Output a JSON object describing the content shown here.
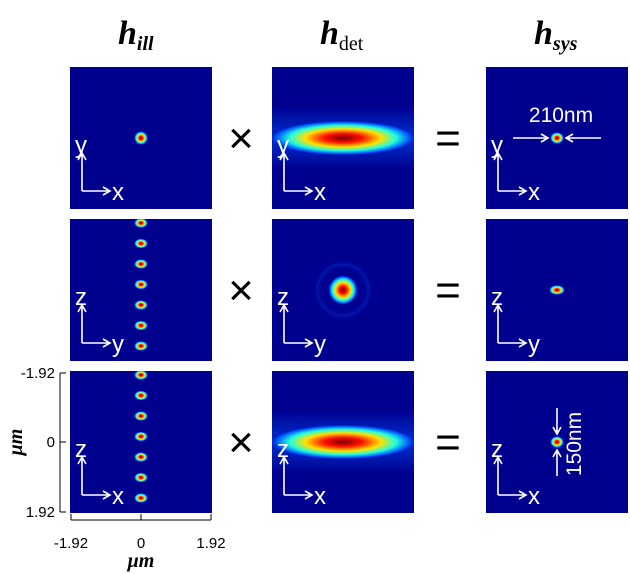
{
  "headers": [
    {
      "main": "h",
      "sub": "ill"
    },
    {
      "main": "h",
      "sub": "det"
    },
    {
      "main": "h",
      "sub": "sys"
    }
  ],
  "panels": [
    [
      {
        "v": "y",
        "h": "x"
      },
      {
        "v": "y",
        "h": "x"
      },
      {
        "v": "y",
        "h": "x"
      }
    ],
    [
      {
        "v": "z",
        "h": "y"
      },
      {
        "v": "z",
        "h": "y"
      },
      {
        "v": "z",
        "h": "y"
      }
    ],
    [
      {
        "v": "z",
        "h": "x"
      },
      {
        "v": "z",
        "h": "x"
      },
      {
        "v": "z",
        "h": "x"
      }
    ]
  ],
  "operators": [
    [
      "×",
      "="
    ],
    [
      "×",
      "="
    ],
    [
      "×",
      "="
    ]
  ],
  "annotations": {
    "lateral": "210nm",
    "axial": "150nm"
  },
  "left_axis": {
    "ticks": [
      "-1.92",
      "0",
      "1.92"
    ],
    "label": "μm"
  },
  "bottom_axis": {
    "ticks": [
      "-1.92",
      "0",
      "1.92"
    ],
    "label": "μm"
  }
}
